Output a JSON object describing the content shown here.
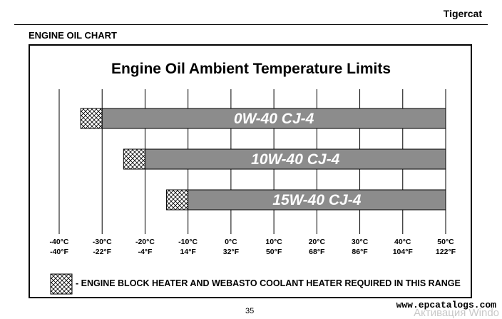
{
  "header": {
    "brand": "Tigercat"
  },
  "section": {
    "title": "ENGINE OIL CHART"
  },
  "chart_data": {
    "type": "bar",
    "title": "Engine Oil Ambient Temperature Limits",
    "x_ticks_c": [
      "-40°C",
      "-30°C",
      "-20°C",
      "-10°C",
      "0°C",
      "10°C",
      "20°C",
      "30°C",
      "40°C",
      "50°C"
    ],
    "x_ticks_f": [
      "-40°F",
      "-22°F",
      "-4°F",
      "14°F",
      "32°F",
      "50°F",
      "68°F",
      "86°F",
      "104°F",
      "122°F"
    ],
    "xlim_c": [
      -40,
      50
    ],
    "series": [
      {
        "name": "0W-40 CJ-4",
        "heater_from_c": -35,
        "heater_to_c": -30,
        "to_c": 50
      },
      {
        "name": "10W-40 CJ-4",
        "heater_from_c": -25,
        "heater_to_c": -20,
        "to_c": 50
      },
      {
        "name": "15W-40 CJ-4",
        "heater_from_c": -15,
        "heater_to_c": -10,
        "to_c": 50
      }
    ],
    "bar_color": "#8c8c8c",
    "grid": true
  },
  "legend": {
    "text": "- ENGINE BLOCK HEATER AND WEBASTO COOLANT HEATER REQUIRED IN THIS RANGE"
  },
  "footer": {
    "page_number": "35",
    "watermark": "www.epcatalogs.com",
    "watermark_overlay": "Активация Windo"
  }
}
